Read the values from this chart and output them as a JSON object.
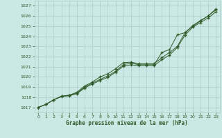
{
  "xlabel": "Graphe pression niveau de la mer (hPa)",
  "bg_color": "#cce8e4",
  "grid_color": "#aaccca",
  "line_color": "#2d5a27",
  "ylim": [
    1016.5,
    1027.5
  ],
  "xlim": [
    -0.5,
    23.5
  ],
  "yticks": [
    1017,
    1018,
    1019,
    1020,
    1021,
    1022,
    1023,
    1024,
    1025,
    1026,
    1027
  ],
  "xticks": [
    0,
    1,
    2,
    3,
    4,
    5,
    6,
    7,
    8,
    9,
    10,
    11,
    12,
    13,
    14,
    15,
    16,
    17,
    18,
    19,
    20,
    21,
    22,
    23
  ],
  "line1_x": [
    0,
    1,
    2,
    3,
    4,
    5,
    6,
    7,
    8,
    9,
    10,
    11,
    12,
    13,
    14,
    15,
    16,
    17,
    18,
    19,
    20,
    21,
    22,
    23
  ],
  "line1_y": [
    1017.0,
    1017.3,
    1017.75,
    1018.05,
    1018.15,
    1018.35,
    1018.9,
    1019.3,
    1019.65,
    1019.95,
    1020.45,
    1021.05,
    1021.2,
    1021.1,
    1021.1,
    1021.1,
    1021.7,
    1022.15,
    1022.9,
    1024.1,
    1024.9,
    1025.35,
    1025.8,
    1026.4
  ],
  "line2_x": [
    0,
    1,
    2,
    3,
    4,
    5,
    6,
    7,
    8,
    9,
    10,
    11,
    12,
    13,
    14,
    15,
    16,
    17,
    18,
    19,
    20,
    21,
    22,
    23
  ],
  "line2_y": [
    1017.0,
    1017.3,
    1017.75,
    1018.1,
    1018.2,
    1018.4,
    1019.0,
    1019.4,
    1019.75,
    1020.1,
    1020.55,
    1021.2,
    1021.35,
    1021.2,
    1021.2,
    1021.2,
    1022.4,
    1022.7,
    1024.15,
    1024.35,
    1025.0,
    1025.5,
    1026.0,
    1026.6
  ],
  "line3_x": [
    0,
    1,
    2,
    3,
    4,
    5,
    6,
    7,
    8,
    9,
    10,
    11,
    12,
    13,
    14,
    15,
    16,
    17,
    18,
    19,
    20,
    21,
    22,
    23
  ],
  "line3_y": [
    1017.0,
    1017.3,
    1017.75,
    1018.1,
    1018.2,
    1018.5,
    1019.1,
    1019.5,
    1020.0,
    1020.3,
    1020.8,
    1021.4,
    1021.45,
    1021.3,
    1021.3,
    1021.3,
    1021.9,
    1022.4,
    1023.0,
    1024.35,
    1025.05,
    1025.55,
    1026.0,
    1026.7
  ]
}
